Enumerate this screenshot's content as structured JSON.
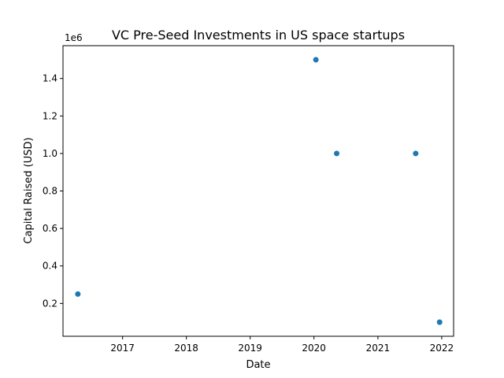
{
  "chart_data": {
    "type": "scatter",
    "title": "VC Pre-Seed Investments in US space startups",
    "xlabel": "Date",
    "ylabel": "Capital Raised (USD)",
    "y_offset_label": "1e6",
    "x_scale": "date",
    "xlim": [
      "2016-01-26",
      "2022-03-10"
    ],
    "ylim": [
      25000,
      1575000
    ],
    "x_ticks": [
      "2017",
      "2018",
      "2019",
      "2020",
      "2021",
      "2022"
    ],
    "y_ticks": [
      "0.2",
      "0.4",
      "0.6",
      "0.8",
      "1.0",
      "1.2",
      "1.4"
    ],
    "grid": false,
    "marker_color": "#1f77b4",
    "points": [
      {
        "x": "2016-04-20",
        "y": 250000
      },
      {
        "x": "2020-01-12",
        "y": 1500000
      },
      {
        "x": "2020-05-10",
        "y": 1000000
      },
      {
        "x": "2021-08-05",
        "y": 1000000
      },
      {
        "x": "2021-12-20",
        "y": 100000
      }
    ]
  }
}
